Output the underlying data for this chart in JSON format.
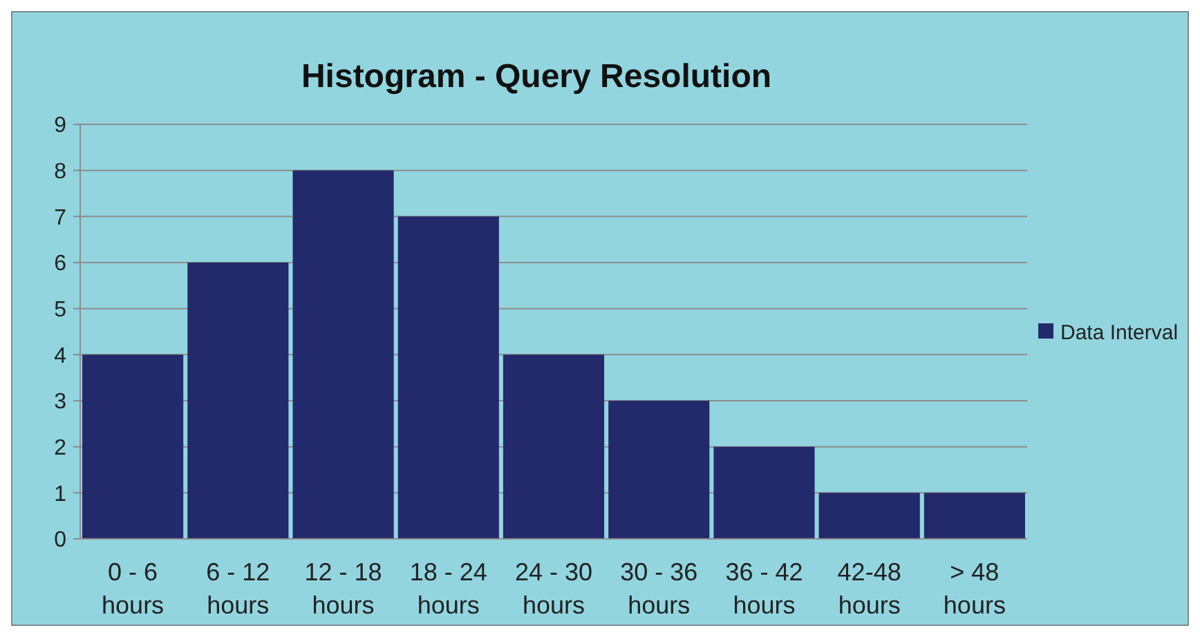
{
  "chart_data": {
    "type": "bar",
    "title": "Histogram - Query Resolution",
    "categories": [
      "0 - 6 hours",
      "6 - 12 hours",
      "12 - 18 hours",
      "18 - 24 hours",
      "24 - 30 hours",
      "30 - 36 hours",
      "36 - 42 hours",
      "42-48 hours",
      "> 48 hours"
    ],
    "series": [
      {
        "name": "Data Interval",
        "color": "#232a6b",
        "values": [
          4,
          6,
          8,
          7,
          4,
          3,
          2,
          1,
          1
        ]
      }
    ],
    "ylim": [
      0,
      9
    ],
    "yticks": [
      0,
      1,
      2,
      3,
      4,
      5,
      6,
      7,
      8,
      9
    ],
    "grid": "y",
    "legend": "right"
  }
}
